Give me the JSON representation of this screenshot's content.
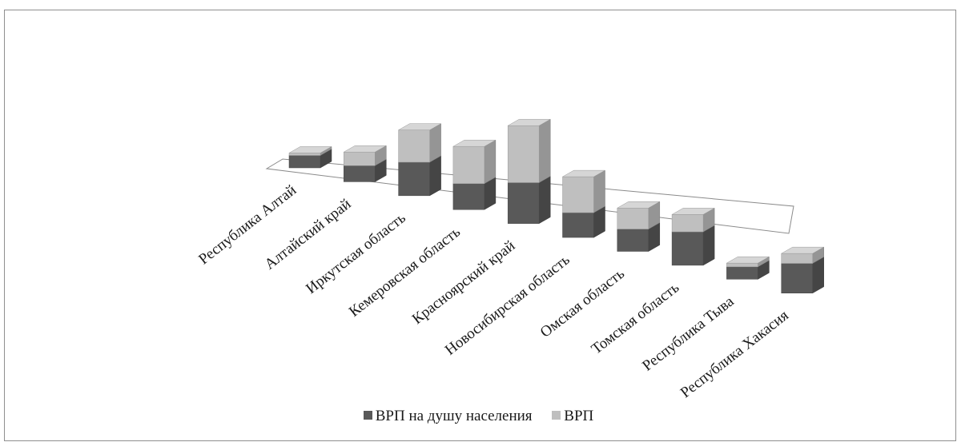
{
  "chart_data": {
    "type": "bar",
    "stacked": true,
    "three_d": true,
    "title": "",
    "xlabel": "",
    "ylabel": "",
    "categories": [
      "Республика Алтай",
      "Алтайский  край",
      "Иркутская  область",
      "Кемеровская область",
      "Красноярский край",
      "Новосибирская область",
      "Омская  область",
      "Томская  область",
      "Республика  Тыва",
      "Республика  Хакасия"
    ],
    "series": [
      {
        "name": "ВРП на душу  населения",
        "color": "#595959",
        "values": [
          10,
          13,
          27,
          21,
          33,
          20,
          18,
          27,
          10,
          24
        ]
      },
      {
        "name": "ВРП",
        "color": "#bfbfbf",
        "values": [
          2,
          11,
          26,
          30,
          46,
          29,
          17,
          14,
          3,
          8
        ]
      }
    ],
    "legend_position": "bottom",
    "grid": false
  }
}
